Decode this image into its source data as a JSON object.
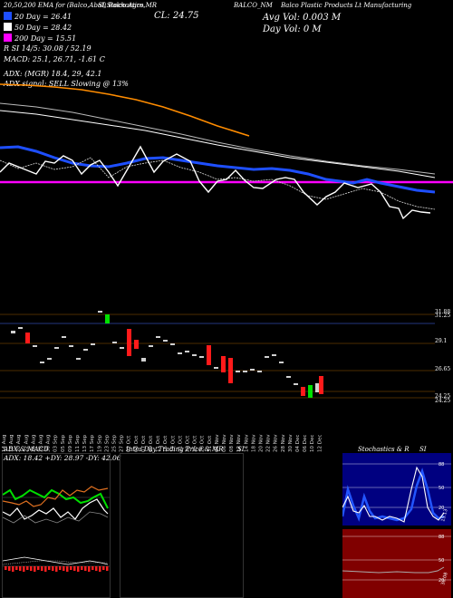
{
  "header": {
    "left_caption": "20,50,200 EMA for (Balco,Abal) Balco Agrosys Limited ADX,MACD,R",
    "stoch_caption": "SI,Stochastics,MR",
    "close_label": "CL: 24.75",
    "ticker_caption": "BALCO_NM",
    "company_caption": "Balco Plastic Products Lt Manufacturing",
    "avg_vol": "Avg Vol: 0.003 M",
    "day_vol": "Day Vol: 0   M"
  },
  "legend": {
    "ema20": "20 Day = 26.41",
    "ema50": "50 Day = 28.42",
    "ema200": "200  Day = 15.51",
    "colors": {
      "ema20": "#1e4fff",
      "ema50": "#ffffff",
      "ema200": "#ff00ff"
    }
  },
  "indicators": {
    "r_line": "R                SI 14/5: 30.08 / 52.19",
    "macd_line": "MACD: 25.1, 26.71,  -1.61 C",
    "adx_line": "ADX:                               (MGR) 18.4,  29,  42.1",
    "signal_line": "ADX  signal: SELL  Slowing @ 13%"
  },
  "price_axis": {
    "labels": [
      "31.88",
      "31.25",
      "29.1",
      "26.65",
      "24.25",
      "24.25"
    ]
  },
  "dates": [
    "14 Aug",
    "16 Aug",
    "20 Aug",
    "22 Aug",
    "26 Aug",
    "28 Aug",
    "30 Aug",
    "03 Sep",
    "05 Sep",
    "09 Sep",
    "11 Sep",
    "13 Sep",
    "17 Sep",
    "19 Sep",
    "23 Sep",
    "25 Sep",
    "27 Sep",
    "01 Oct",
    "03 Oct",
    "07 Oct",
    "09 Oct",
    "11 Oct",
    "15 Oct",
    "17 Oct",
    "21 Oct",
    "23 Oct",
    "25 Oct",
    "28 Oct",
    "31 Oct",
    "04 Nov",
    "06 Nov",
    "08 Nov",
    "12 Nov",
    "14 Nov",
    "18 Nov",
    "20 Nov",
    "22 Nov",
    "26 Nov",
    "28 Nov",
    "30 Nov",
    "04 Dec",
    "06 Dec",
    "10 Dec",
    "12 Dec"
  ],
  "panels": {
    "adx": {
      "title": "ADX  & MACD",
      "readout": "ADX: 18.42  +DY: 28.97  -DY: 42.06"
    },
    "intraday": {
      "title": "Intra  Day Trading Price  & MR",
      "si_label": "SI"
    },
    "stoch": {
      "title": "Stochastics & R",
      "si_label": "SI",
      "axis_top": [
        "88",
        "50",
        "20"
      ],
      "readout_top": "15.13",
      "axis_bottom": [
        "88",
        "50",
        "20"
      ],
      "readout_bottom": "30.08"
    }
  }
}
